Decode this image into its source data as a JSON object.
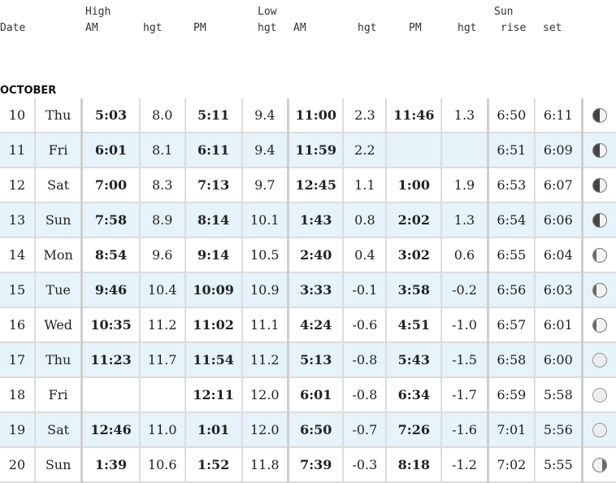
{
  "header": {
    "date": "Date",
    "high": "High",
    "low": "Low",
    "sun": "Sun",
    "am": "AM",
    "hgt": "hgt",
    "pm": "PM",
    "rise": "rise",
    "set": "set"
  },
  "month": "OCTOBER",
  "rows": [
    {
      "day": "10",
      "dow": "Thu",
      "h_am": "5:03",
      "h_am_hgt": "8.0",
      "h_pm": "5:11",
      "h_pm_hgt": "9.4",
      "l_am": "11:00",
      "l_am_hgt": "2.3",
      "l_pm": "11:46",
      "l_pm_hgt": "1.3",
      "rise": "6:50",
      "set": "6:11",
      "moon": "quarter"
    },
    {
      "day": "11",
      "dow": "Fri",
      "h_am": "6:01",
      "h_am_hgt": "8.1",
      "h_pm": "6:11",
      "h_pm_hgt": "9.4",
      "l_am": "11:59",
      "l_am_hgt": "2.2",
      "l_pm": "",
      "l_pm_hgt": "",
      "rise": "6:51",
      "set": "6:09",
      "moon": "quarter"
    },
    {
      "day": "12",
      "dow": "Sat",
      "h_am": "7:00",
      "h_am_hgt": "8.3",
      "h_pm": "7:13",
      "h_pm_hgt": "9.7",
      "l_am": "12:45",
      "l_am_hgt": "1.1",
      "l_pm": "1:00",
      "l_pm_hgt": "1.9",
      "rise": "6:53",
      "set": "6:07",
      "moon": "quarter"
    },
    {
      "day": "13",
      "dow": "Sun",
      "h_am": "7:58",
      "h_am_hgt": "8.9",
      "h_pm": "8:14",
      "h_pm_hgt": "10.1",
      "l_am": "1:43",
      "l_am_hgt": "0.8",
      "l_pm": "2:02",
      "l_pm_hgt": "1.3",
      "rise": "6:54",
      "set": "6:06",
      "moon": "quarter"
    },
    {
      "day": "14",
      "dow": "Mon",
      "h_am": "8:54",
      "h_am_hgt": "9.6",
      "h_pm": "9:14",
      "h_pm_hgt": "10.5",
      "l_am": "2:40",
      "l_am_hgt": "0.4",
      "l_pm": "3:02",
      "l_pm_hgt": "0.6",
      "rise": "6:55",
      "set": "6:04",
      "moon": "gibbous"
    },
    {
      "day": "15",
      "dow": "Tue",
      "h_am": "9:46",
      "h_am_hgt": "10.4",
      "h_pm": "10:09",
      "h_pm_hgt": "10.9",
      "l_am": "3:33",
      "l_am_hgt": "-0.1",
      "l_pm": "3:58",
      "l_pm_hgt": "-0.2",
      "rise": "6:56",
      "set": "6:03",
      "moon": "gibbous"
    },
    {
      "day": "16",
      "dow": "Wed",
      "h_am": "10:35",
      "h_am_hgt": "11.2",
      "h_pm": "11:02",
      "h_pm_hgt": "11.1",
      "l_am": "4:24",
      "l_am_hgt": "-0.6",
      "l_pm": "4:51",
      "l_pm_hgt": "-1.0",
      "rise": "6:57",
      "set": "6:01",
      "moon": "gibbous"
    },
    {
      "day": "17",
      "dow": "Thu",
      "h_am": "11:23",
      "h_am_hgt": "11.7",
      "h_pm": "11:54",
      "h_pm_hgt": "11.2",
      "l_am": "5:13",
      "l_am_hgt": "-0.8",
      "l_pm": "5:43",
      "l_pm_hgt": "-1.5",
      "rise": "6:58",
      "set": "6:00",
      "moon": "full"
    },
    {
      "day": "18",
      "dow": "Fri",
      "h_am": "",
      "h_am_hgt": "",
      "h_pm": "12:11",
      "h_pm_hgt": "12.0",
      "l_am": "6:01",
      "l_am_hgt": "-0.8",
      "l_pm": "6:34",
      "l_pm_hgt": "-1.7",
      "rise": "6:59",
      "set": "5:58",
      "moon": "full"
    },
    {
      "day": "19",
      "dow": "Sat",
      "h_am": "12:46",
      "h_am_hgt": "11.0",
      "h_pm": "1:01",
      "h_pm_hgt": "12.0",
      "l_am": "6:50",
      "l_am_hgt": "-0.7",
      "l_pm": "7:26",
      "l_pm_hgt": "-1.6",
      "rise": "7:01",
      "set": "5:56",
      "moon": "full"
    },
    {
      "day": "20",
      "dow": "Sun",
      "h_am": "1:39",
      "h_am_hgt": "10.6",
      "h_pm": "1:52",
      "h_pm_hgt": "11.8",
      "l_am": "7:39",
      "l_am_hgt": "-0.3",
      "l_pm": "8:18",
      "l_pm_hgt": "-1.2",
      "rise": "7:02",
      "set": "5:55",
      "moon": "wane"
    }
  ]
}
